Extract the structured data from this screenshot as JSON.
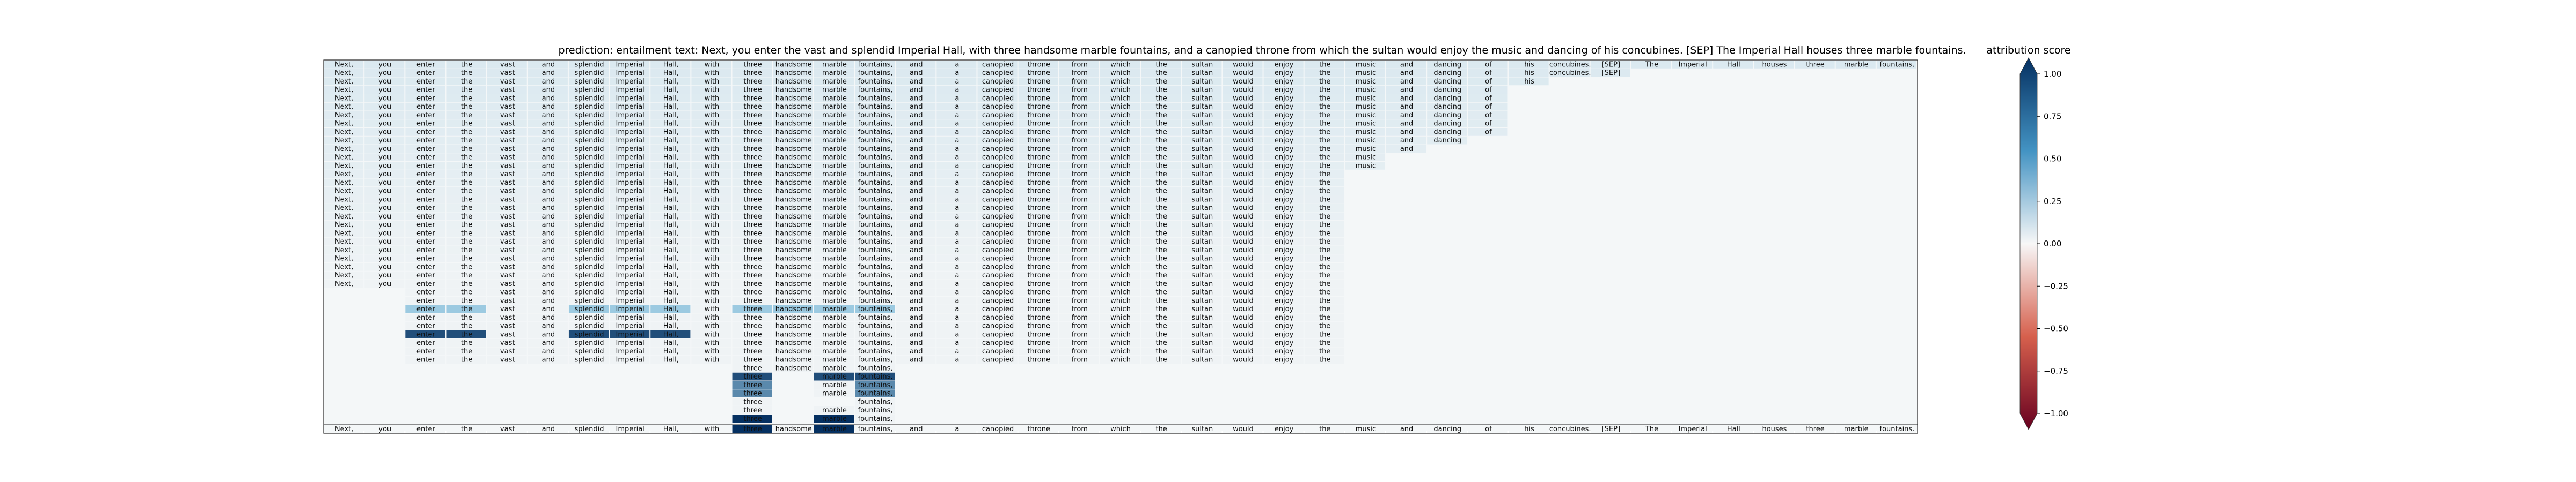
{
  "chart_data": {
    "type": "heatmap",
    "title": "prediction:  entailment     text:  Next, you enter the vast and splendid Imperial Hall, with three handsome marble fountains, and a canopied throne from which the sultan would enjoy the music and dancing of his concubines. [SEP] The Imperial Hall houses three marble fountains.",
    "tokens": [
      "Next,",
      "you",
      "enter",
      "the",
      "vast",
      "and",
      "splendid",
      "Imperial",
      "Hall,",
      "with",
      "three",
      "handsome",
      "marble",
      "fountains,",
      "and",
      "a",
      "canopied",
      "throne",
      "from",
      "which",
      "the",
      "sultan",
      "would",
      "enjoy",
      "the",
      "music",
      "and",
      "dancing",
      "of",
      "his",
      "concubines.",
      "[SEP]",
      "The",
      "Imperial",
      "Hall",
      "houses",
      "three",
      "marble",
      "fountains."
    ],
    "row_spans": [
      [
        0,
        38
      ],
      [
        0,
        31
      ],
      [
        0,
        29
      ],
      [
        0,
        28
      ],
      [
        0,
        28
      ],
      [
        0,
        28
      ],
      [
        0,
        28
      ],
      [
        0,
        28
      ],
      [
        0,
        28
      ],
      [
        0,
        27
      ],
      [
        0,
        26
      ],
      [
        0,
        25
      ],
      [
        0,
        25
      ],
      [
        0,
        24
      ],
      [
        0,
        24
      ],
      [
        0,
        24
      ],
      [
        0,
        24
      ],
      [
        0,
        24
      ],
      [
        0,
        24
      ],
      [
        0,
        24
      ],
      [
        0,
        24
      ],
      [
        0,
        24
      ],
      [
        0,
        24
      ],
      [
        0,
        24
      ],
      [
        0,
        24
      ],
      [
        0,
        24
      ],
      [
        0,
        24
      ],
      [
        2,
        24
      ],
      [
        2,
        24
      ],
      [
        2,
        24
      ],
      [
        2,
        24
      ],
      [
        2,
        24
      ],
      [
        2,
        24
      ],
      [
        2,
        24
      ],
      [
        2,
        24
      ],
      [
        2,
        24
      ],
      [
        10,
        13
      ],
      [
        10,
        13
      ],
      [
        10,
        13
      ],
      [
        10,
        13
      ],
      [
        10,
        13
      ],
      [
        10,
        13
      ],
      [
        10,
        13
      ]
    ],
    "row_hidden": [
      [],
      [],
      [],
      [],
      [],
      [],
      [],
      [],
      [],
      [],
      [],
      [],
      [],
      [],
      [],
      [],
      [],
      [],
      [],
      [],
      [],
      [],
      [],
      [],
      [],
      [],
      [],
      [],
      [],
      [],
      [],
      [],
      [],
      [],
      [],
      [],
      [],
      [
        11
      ],
      [
        11
      ],
      [
        11
      ],
      [
        11,
        12
      ],
      [
        11
      ],
      [
        11
      ]
    ],
    "highlight_rows": {
      "29": {
        "2": 0.45,
        "3": 0.45,
        "6": 0.45,
        "7": 0.45,
        "8": 0.45,
        "10": 0.45,
        "11": 0.45,
        "12": 0.45,
        "13": 0.45,
        "32": 0.45,
        "34": 0.45,
        "36": 0.45,
        "37": 0.45,
        "38": 0.45
      },
      "32": {
        "2": 0.9,
        "3": 0.9,
        "6": 0.9,
        "7": 0.9,
        "8": 0.9
      },
      "37": {
        "10": 0.9,
        "11": 0.9,
        "12": 0.9,
        "13": 0.9,
        "36": 0.9,
        "37": 0.9,
        "38": 0.9
      },
      "38": {
        "10": 0.7,
        "13": 0.7,
        "36": 0.7,
        "38": 0.7
      },
      "39": {
        "10": 0.7,
        "13": 0.7,
        "36": 0.7,
        "38": 0.7
      },
      "42": {
        "10": 1.0,
        "12": 1.0
      }
    },
    "colorbar": {
      "label": "attribution score",
      "vmin": -1.0,
      "vmax": 1.0,
      "ticks": [
        "1.00",
        "0.75",
        "0.50",
        "0.25",
        "0.00",
        "−0.25",
        "−0.50",
        "−0.75",
        "−1.00"
      ],
      "colors": {
        "neg_max": "#67001f",
        "neutral": "#f7f7f7",
        "pos_max": "#053061"
      }
    }
  }
}
